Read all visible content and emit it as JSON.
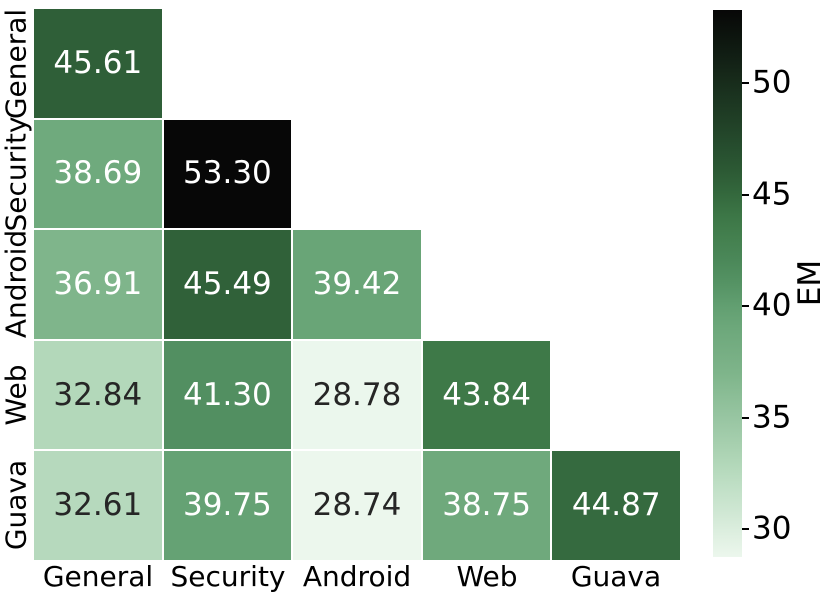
{
  "chart_data": {
    "type": "heatmap",
    "title": "",
    "categories": [
      "General",
      "Security",
      "Android",
      "Web",
      "Guava"
    ],
    "rows": [
      [
        45.61
      ],
      [
        38.69,
        53.3
      ],
      [
        36.91,
        45.49,
        39.42
      ],
      [
        32.84,
        41.3,
        28.78,
        43.84
      ],
      [
        32.61,
        39.75,
        28.74,
        38.75,
        44.87
      ]
    ],
    "mask": "upper-triangle-hidden",
    "value_decimals": 2,
    "colorbar": {
      "label": "EM",
      "ticks": [
        30,
        35,
        40,
        45,
        50
      ],
      "vmin": 28.74,
      "vmax": 53.3
    },
    "palette": {
      "stops": [
        {
          "t": 0.0,
          "color": "#ecf7ed"
        },
        {
          "t": 0.16,
          "color": "#b5d9bc"
        },
        {
          "t": 0.333,
          "color": "#7fb58b"
        },
        {
          "t": 0.44,
          "color": "#68a476"
        },
        {
          "t": 0.52,
          "color": "#4f8d5e"
        },
        {
          "t": 0.62,
          "color": "#3d7847"
        },
        {
          "t": 0.69,
          "color": "#2e5e37"
        },
        {
          "t": 1.0,
          "color": "#070707"
        }
      ],
      "gridline": "#ffffff",
      "annot_dark": "#262626",
      "annot_light": "#ffffff"
    }
  }
}
